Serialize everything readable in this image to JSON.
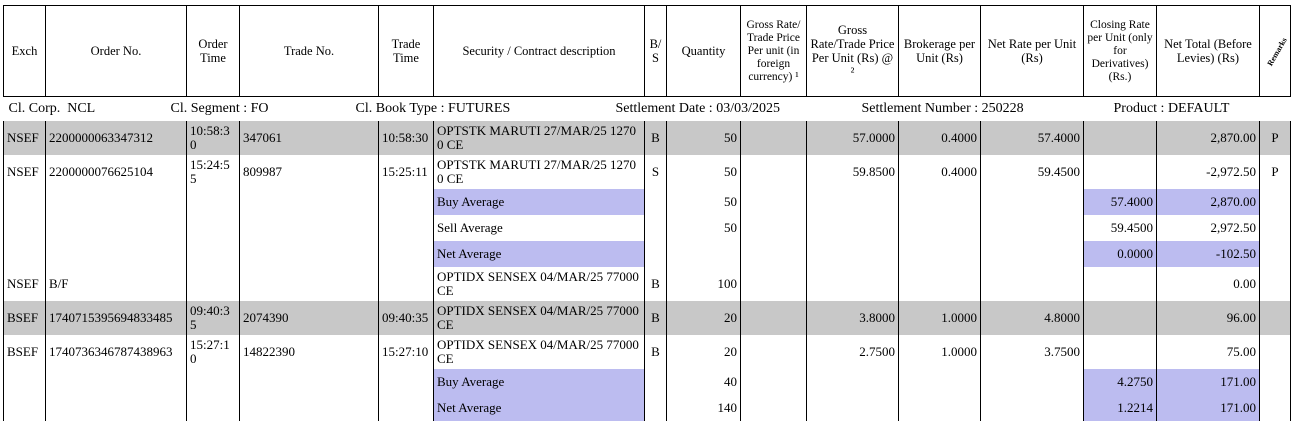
{
  "table": {
    "columns": {
      "exch": "Exch",
      "order_no": "Order No.",
      "order_time": "Order Time",
      "trade_no": "Trade No.",
      "trade_time": "Trade Time",
      "security": "Security / Contract description",
      "bs": "B/ S",
      "qty": "Quantity",
      "gross_fc": "Gross Rate/ Trade Price Per unit (in foreign currency) ¹",
      "gross_rs": "Gross Rate/Trade Price Per Unit (Rs) @ ²",
      "brokerage": "Brokerage per Unit (Rs)",
      "net_rate": "Net Rate per Unit (Rs)",
      "closing": "Closing Rate per Unit (only for Derivatives) (Rs.)",
      "net_total": "Net Total (Before Levies) (Rs)",
      "remarks": "Remarks"
    },
    "info": [
      "Cl. Corp.  NCL",
      "Cl. Segment : FO",
      "Cl. Book Type : FUTURES",
      "Settlement Date : 03/03/2025",
      "Settlement Number : 250228",
      "Product : DEFAULT"
    ],
    "rows": [
      {
        "exch": "NSEF",
        "order_no": "2200000063347312",
        "order_time": "10:58:30",
        "trade_no": "347061",
        "trade_time": "10:58:30",
        "security": "OPTSTK MARUTI 27/MAR/25 12700 CE",
        "bs": "B",
        "qty": "50",
        "gross_rs": "57.0000",
        "brokerage": "0.4000",
        "net_rate": "57.4000",
        "net_total": "2,870.00",
        "remarks": "P"
      },
      {
        "exch": "NSEF",
        "order_no": "2200000076625104",
        "order_time": "15:24:55",
        "trade_no": "809987",
        "trade_time": "15:25:11",
        "security": "OPTSTK MARUTI 27/MAR/25 12700 CE",
        "bs": "S",
        "qty": "50",
        "gross_rs": "59.8500",
        "brokerage": "0.4000",
        "net_rate": "59.4500",
        "net_total": "-2,972.50",
        "remarks": "P"
      },
      {
        "security": "Buy Average",
        "qty": "50",
        "closing": "57.4000",
        "net_total": "2,870.00"
      },
      {
        "security": "Sell Average",
        "qty": "50",
        "closing": "59.4500",
        "net_total": "2,972.50"
      },
      {
        "security": "Net Average",
        "closing": "0.0000",
        "net_total": "-102.50"
      },
      {
        "exch": "NSEF",
        "order_no": "B/F",
        "security": "OPTIDX SENSEX 04/MAR/25 77000 CE",
        "bs": "B",
        "qty": "100",
        "net_total": "0.00"
      },
      {
        "exch": "BSEF",
        "order_no": "1740715395694833485",
        "order_time": "09:40:35",
        "trade_no": "2074390",
        "trade_time": "09:40:35",
        "security": "OPTIDX SENSEX 04/MAR/25 77000 CE",
        "bs": "B",
        "qty": "20",
        "gross_rs": "3.8000",
        "brokerage": "1.0000",
        "net_rate": "4.8000",
        "net_total": "96.00"
      },
      {
        "exch": "BSEF",
        "order_no": "1740736346787438963",
        "order_time": "15:27:10",
        "trade_no": "14822390",
        "trade_time": "15:27:10",
        "security": "OPTIDX SENSEX 04/MAR/25 77000 CE",
        "bs": "B",
        "qty": "20",
        "gross_rs": "2.7500",
        "brokerage": "1.0000",
        "net_rate": "3.7500",
        "net_total": "75.00"
      },
      {
        "security": "Buy Average",
        "qty": "40",
        "closing": "4.2750",
        "net_total": "171.00"
      },
      {
        "security": "Net Average",
        "qty": "140",
        "closing": "1.2214",
        "net_total": "171.00"
      }
    ]
  }
}
